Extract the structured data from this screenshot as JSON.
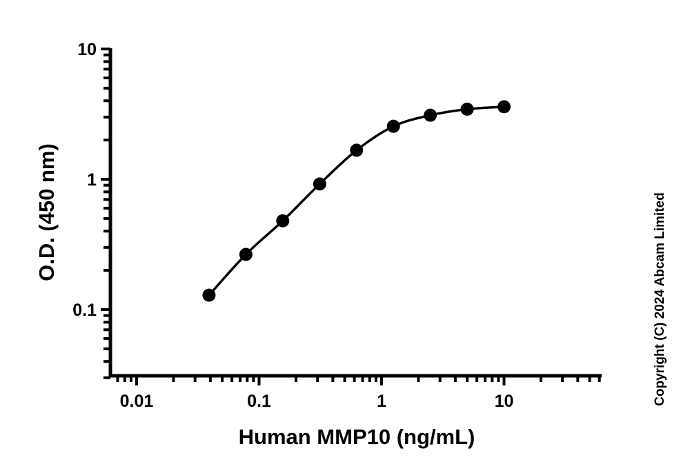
{
  "chart_data": {
    "type": "scatter",
    "title": "",
    "xlabel": "Human MMP10 (ng/mL)",
    "ylabel": "O.D. (450 nm)",
    "xscale": "log",
    "yscale": "log",
    "xlim": [
      0.006,
      60
    ],
    "ylim": [
      0.03,
      10
    ],
    "x_ticks": [
      0.01,
      0.1,
      1,
      10
    ],
    "x_tick_labels": [
      "0.01",
      "0.1",
      "1",
      "10"
    ],
    "y_ticks": [
      0.1,
      1,
      10
    ],
    "y_tick_labels": [
      "0.1",
      "1",
      "10"
    ],
    "grid": false,
    "legend": null,
    "series": [
      {
        "name": "Human MMP10",
        "marker": "filled-circle",
        "color": "#000000",
        "fit": "4PL curve",
        "x": [
          0.039,
          0.078,
          0.156,
          0.3125,
          0.625,
          1.25,
          2.5,
          5,
          10
        ],
        "y": [
          0.129,
          0.265,
          0.48,
          0.92,
          1.67,
          2.55,
          3.1,
          3.45,
          3.6
        ]
      }
    ],
    "annotations": [
      "Copyright (C) 2024 Abcam Limited"
    ]
  },
  "labels": {
    "xlabel": "Human MMP10 (ng/mL)",
    "ylabel": "O.D. (450 nm)",
    "copyright": "Copyright (C) 2024 Abcam Limited"
  }
}
